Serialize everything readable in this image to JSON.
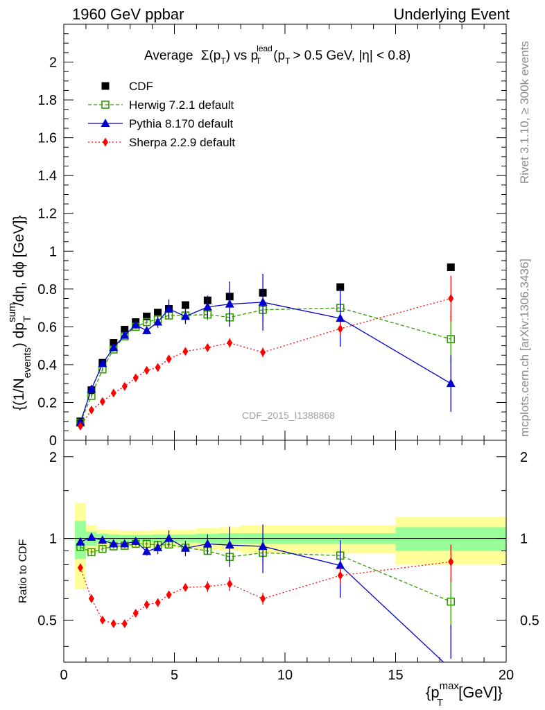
{
  "header": {
    "left": "1960 GeV ppbar",
    "right": "Underlying Event"
  },
  "side_labels": {
    "rivet": "Rivet 3.1.10, ≥ 300k events",
    "mcplots": "mcplots.cern.ch [arXiv:1306.3436]"
  },
  "chart_data": {
    "type": "scatter",
    "title_parts": {
      "a": "Average",
      "b": "Σ(p",
      "b_sub": "T",
      "c": ") vs p",
      "c_sub": "T",
      "c_sup": "lead",
      "d": "(p",
      "d_sub": "T",
      "e": "> 0.5 GeV, |η| < 0.8)"
    },
    "watermark": "CDF_2015_I1388868",
    "ylabel_parts": {
      "a": "{(1/N",
      "a_sub": "events",
      "b": ") dp",
      "b_sub": "T",
      "b_sup": "sum",
      "c": "/dη, dϕ [GeV]}"
    },
    "ratio_ylabel": "Ratio to CDF",
    "xlabel_parts": {
      "a": "{p",
      "a_sub": "T",
      "a_sup": "max",
      "b": "[GeV]}"
    },
    "xlim": [
      0,
      20
    ],
    "ylim": [
      0,
      2.2
    ],
    "ratio_ylim": [
      0.35,
      2.3
    ],
    "ratio_log": true,
    "x_ticks": [
      0,
      5,
      10,
      15,
      20
    ],
    "y_ticks": [
      0,
      0.2,
      0.4,
      0.6,
      0.8,
      1,
      1.2,
      1.4,
      1.6,
      1.8,
      2
    ],
    "ratio_ticks": [
      0.5,
      1,
      2
    ],
    "legend_position": "top-left",
    "bins": [
      [
        0.5,
        1
      ],
      [
        1,
        1.5
      ],
      [
        1.5,
        2
      ],
      [
        2,
        2.5
      ],
      [
        2.5,
        3
      ],
      [
        3,
        3.5
      ],
      [
        3.5,
        4
      ],
      [
        4,
        4.5
      ],
      [
        4.5,
        5
      ],
      [
        5,
        6
      ],
      [
        6,
        7
      ],
      [
        7,
        8
      ],
      [
        8,
        10
      ],
      [
        10,
        15
      ],
      [
        15,
        20
      ]
    ],
    "ratio_band_inner": [
      0.16,
      0.06,
      0.04,
      0.035,
      0.03,
      0.03,
      0.03,
      0.035,
      0.035,
      0.035,
      0.04,
      0.045,
      0.045,
      0.045,
      0.1
    ],
    "ratio_band_outer": [
      0.35,
      0.12,
      0.08,
      0.075,
      0.07,
      0.07,
      0.07,
      0.075,
      0.075,
      0.075,
      0.09,
      0.1,
      0.12,
      0.12,
      0.2
    ],
    "series": [
      {
        "name": "CDF",
        "color": "#000000",
        "marker": "square-filled",
        "x": [
          0.75,
          1.25,
          1.75,
          2.25,
          2.75,
          3.25,
          3.75,
          4.25,
          4.75,
          5.5,
          6.5,
          7.5,
          9,
          12.5,
          17.5
        ],
        "y": [
          0.1,
          0.265,
          0.41,
          0.515,
          0.585,
          0.625,
          0.655,
          0.675,
          0.695,
          0.715,
          0.74,
          0.76,
          0.78,
          0.81,
          0.915
        ]
      },
      {
        "name": "Herwig 7.2.1 default",
        "color": "#339900",
        "marker": "square-open",
        "line": "dashed",
        "x": [
          0.75,
          1.25,
          1.75,
          2.25,
          2.75,
          3.25,
          3.75,
          4.25,
          4.75,
          5.5,
          6.5,
          7.5,
          9,
          12.5,
          17.5
        ],
        "y": [
          0.093,
          0.235,
          0.375,
          0.48,
          0.55,
          0.6,
          0.625,
          0.64,
          0.66,
          0.66,
          0.665,
          0.65,
          0.69,
          0.7,
          0.535
        ],
        "yerr": [
          0.005,
          0.01,
          0.01,
          0.01,
          0.01,
          0.01,
          0.01,
          0.01,
          0.015,
          0.02,
          0.03,
          0.04,
          0.06,
          0.05,
          0.13
        ],
        "ratio": [
          0.93,
          0.89,
          0.915,
          0.935,
          0.94,
          0.955,
          0.955,
          0.945,
          0.95,
          0.925,
          0.9,
          0.855,
          0.885,
          0.865,
          0.585
        ],
        "ratio_err": [
          0.03,
          0.03,
          0.02,
          0.02,
          0.02,
          0.02,
          0.02,
          0.02,
          0.02,
          0.03,
          0.03,
          0.04,
          0.07,
          0.05,
          0.12
        ]
      },
      {
        "name": "Pythia 8.170 default",
        "color": "#0000cc",
        "marker": "triangle",
        "line": "solid",
        "x": [
          0.75,
          1.25,
          1.75,
          2.25,
          2.75,
          3.25,
          3.75,
          4.25,
          4.75,
          5.5,
          6.5,
          7.5,
          9,
          12.5,
          17.5
        ],
        "y": [
          0.095,
          0.27,
          0.405,
          0.49,
          0.555,
          0.61,
          0.58,
          0.625,
          0.695,
          0.655,
          0.705,
          0.72,
          0.73,
          0.645,
          0.3
        ],
        "yerr": [
          0.005,
          0.01,
          0.015,
          0.015,
          0.015,
          0.02,
          0.02,
          0.03,
          0.05,
          0.04,
          0.06,
          0.12,
          0.15,
          0.15,
          0.15
        ],
        "ratio": [
          0.97,
          1.01,
          0.985,
          0.955,
          0.955,
          0.975,
          0.895,
          0.925,
          1.0,
          0.92,
          0.955,
          0.945,
          0.935,
          0.795,
          0.33
        ],
        "ratio_err": [
          0.03,
          0.03,
          0.03,
          0.03,
          0.03,
          0.03,
          0.03,
          0.05,
          0.07,
          0.06,
          0.08,
          0.16,
          0.19,
          0.19,
          0.15
        ]
      },
      {
        "name": "Sherpa 2.2.9 default",
        "color": "#ff0000",
        "marker": "diamond",
        "line": "dotted",
        "x": [
          0.75,
          1.25,
          1.75,
          2.25,
          2.75,
          3.25,
          3.75,
          4.25,
          4.75,
          5.5,
          6.5,
          7.5,
          9,
          12.5,
          17.5
        ],
        "y": [
          0.075,
          0.16,
          0.205,
          0.25,
          0.285,
          0.33,
          0.37,
          0.385,
          0.43,
          0.47,
          0.49,
          0.515,
          0.465,
          0.59,
          0.75
        ],
        "yerr": [
          0.005,
          0.008,
          0.008,
          0.01,
          0.01,
          0.01,
          0.01,
          0.015,
          0.015,
          0.015,
          0.02,
          0.025,
          0.025,
          0.035,
          0.12
        ],
        "ratio": [
          0.78,
          0.6,
          0.5,
          0.485,
          0.485,
          0.53,
          0.57,
          0.58,
          0.62,
          0.66,
          0.665,
          0.68,
          0.6,
          0.73,
          0.82
        ],
        "ratio_err": [
          0.02,
          0.02,
          0.015,
          0.015,
          0.015,
          0.015,
          0.015,
          0.02,
          0.02,
          0.02,
          0.03,
          0.04,
          0.03,
          0.05,
          0.13
        ]
      }
    ]
  }
}
